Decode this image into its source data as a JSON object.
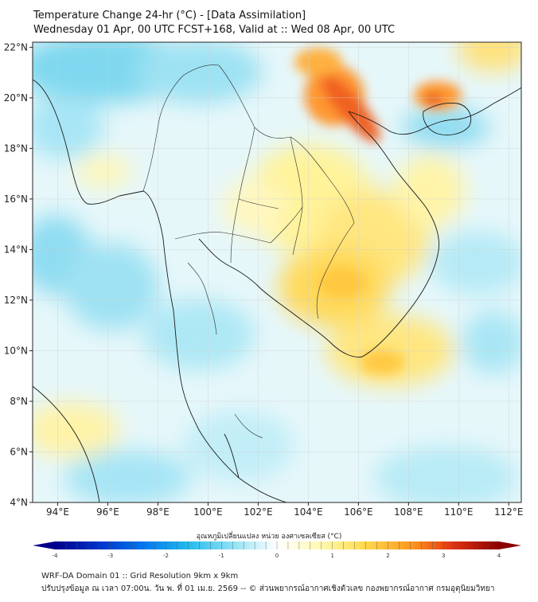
{
  "title": {
    "line1": "Temperature Change 24-hr (°C) - [Data Assimilation]",
    "line2": "Wednesday 01 Apr, 00 UTC FCST+168, Valid at :: Wed 08 Apr, 00 UTC"
  },
  "map": {
    "lon_range": [
      93,
      112.5
    ],
    "lat_range": [
      4,
      22.2
    ],
    "lon_ticks": [
      "94°E",
      "96°E",
      "98°E",
      "100°E",
      "102°E",
      "104°E",
      "106°E",
      "108°E",
      "110°E",
      "112°E"
    ],
    "lat_ticks": [
      "22°N",
      "20°N",
      "18°N",
      "16°N",
      "14°N",
      "12°N",
      "10°N",
      "8°N",
      "6°N",
      "4°N"
    ],
    "gridlines": true
  },
  "colorbar": {
    "label": "อุณหภูมิเปลี่ยนแปลง หน่วย องศาเซลเซียส (°C)",
    "range": [
      -4,
      4
    ],
    "ticks": [
      "-4",
      "-3",
      "-2",
      "-1",
      "0",
      "1",
      "2",
      "3",
      "4"
    ],
    "colors": [
      "#00008b",
      "#0033cc",
      "#0077ee",
      "#22bbee",
      "#8fe2f5",
      "#ffffff",
      "#fff9b0",
      "#ffd84a",
      "#ff9a20",
      "#e03010",
      "#8b0000"
    ]
  },
  "footer": {
    "line1": "WRF-DA Domain 01 :: Grid Resolution 9km x 9km",
    "line2": "ปรับปรุงข้อมูล ณ เวลา 07:00น. วัน พ. ที่ 01 เม.ย. 2569 -- © ส่วนพยากรณ์อากาศเชิงตัวเลข กองพยากรณ์อากาศ กรมอุตุนิยมวิทยา"
  }
}
